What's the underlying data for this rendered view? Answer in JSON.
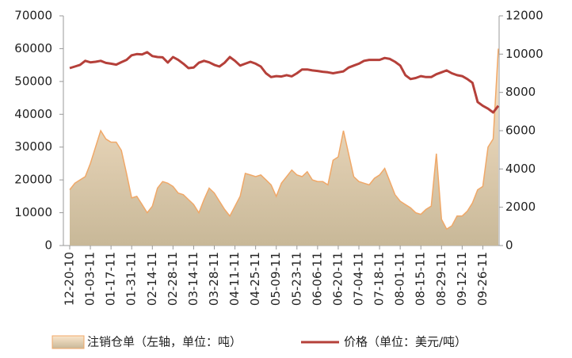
{
  "chart_data": {
    "type": "area",
    "categories": [
      "12-20-10",
      null,
      null,
      null,
      "01-03-11",
      null,
      null,
      null,
      "01-17-11",
      null,
      null,
      null,
      "01-31-11",
      null,
      null,
      null,
      "02-14-11",
      null,
      null,
      null,
      "02-28-11",
      null,
      null,
      null,
      "03-14-11",
      null,
      null,
      null,
      "03-28-11",
      null,
      null,
      null,
      "04-11-11",
      null,
      null,
      null,
      "04-25-11",
      null,
      null,
      null,
      "05-09-11",
      null,
      null,
      null,
      "05-23-11",
      null,
      null,
      null,
      "06-06-11",
      null,
      null,
      null,
      "06-20-11",
      null,
      null,
      null,
      "07-04-11",
      null,
      null,
      null,
      "07-18-11",
      null,
      null,
      null,
      "08-01-11",
      null,
      null,
      null,
      "08-15-11",
      null,
      null,
      null,
      "08-29-11",
      null,
      null,
      null,
      "09-12-11",
      null,
      null,
      null,
      "09-26-11",
      null,
      null,
      null
    ],
    "series": [
      {
        "name": "注销仓单（左轴，单位：吨）",
        "type": "area",
        "color": "#f0a868",
        "axis": "y",
        "values": [
          17000,
          19000,
          20000,
          21000,
          25000,
          30000,
          35000,
          32500,
          31500,
          31500,
          29000,
          22000,
          14500,
          15000,
          12500,
          10000,
          12000,
          17500,
          19500,
          19000,
          18000,
          16000,
          15500,
          14000,
          12500,
          10000,
          14000,
          17500,
          16000,
          13500,
          11000,
          9000,
          12000,
          15000,
          22000,
          21500,
          21000,
          21500,
          20000,
          18500,
          15000,
          19000,
          21000,
          23000,
          21500,
          21000,
          22500,
          20000,
          19500,
          19500,
          18500,
          26000,
          27000,
          35000,
          28000,
          21000,
          19500,
          19000,
          18500,
          20500,
          21500,
          23500,
          19500,
          15500,
          13500,
          12500,
          11500,
          10000,
          9500,
          11000,
          12000,
          28000,
          8000,
          5000,
          6000,
          9000,
          9000,
          10500,
          13000,
          17000,
          18000,
          30000,
          32500,
          60000
        ]
      },
      {
        "name": "价格（单位：美元/吨）",
        "type": "line",
        "color": "#b5403a",
        "axis": "y2",
        "values": [
          9270,
          9350,
          9440,
          9650,
          9570,
          9600,
          9650,
          9540,
          9500,
          9450,
          9580,
          9700,
          9940,
          10000,
          9980,
          10100,
          9900,
          9850,
          9830,
          9560,
          9850,
          9700,
          9500,
          9270,
          9300,
          9550,
          9650,
          9570,
          9440,
          9350,
          9550,
          9850,
          9650,
          9400,
          9500,
          9600,
          9500,
          9350,
          9000,
          8800,
          8850,
          8830,
          8900,
          8840,
          9000,
          9200,
          9200,
          9150,
          9120,
          9080,
          9050,
          9000,
          9050,
          9100,
          9300,
          9400,
          9500,
          9650,
          9700,
          9700,
          9700,
          9800,
          9750,
          9600,
          9400,
          8900,
          8700,
          8750,
          8850,
          8800,
          8800,
          8950,
          9050,
          9150,
          9000,
          8900,
          8850,
          8700,
          8500,
          7500,
          7300,
          7150,
          6950,
          7300
        ]
      }
    ],
    "ylim": [
      0,
      70000
    ],
    "yticks": [
      0,
      10000,
      20000,
      30000,
      40000,
      50000,
      60000,
      70000
    ],
    "y2lim": [
      0,
      12000
    ],
    "y2ticks": [
      0,
      2000,
      4000,
      6000,
      8000,
      10000,
      12000
    ],
    "grid": false
  }
}
